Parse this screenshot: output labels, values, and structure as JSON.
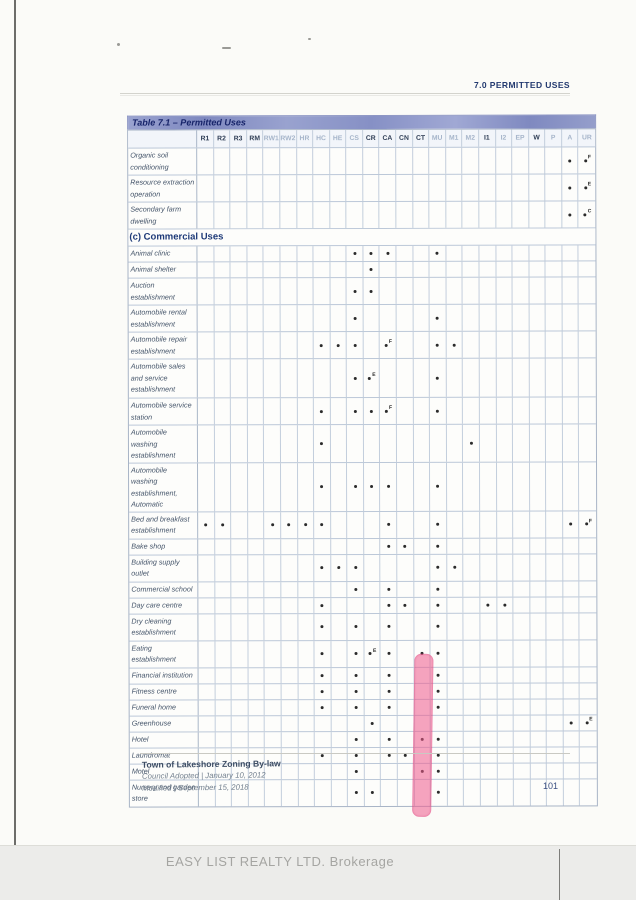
{
  "page": {
    "header": "7.0  PERMITTED USES",
    "page_number": "101",
    "watermark": "EASY LIST REALTY LTD.  Brokerage"
  },
  "footer": {
    "line1": "Town of Lakeshore Zoning By-law",
    "line2": "Council Adopted  |  January 10, 2012",
    "line3": "Modified  |  September 15, 2018"
  },
  "colors": {
    "title_bar_blue": "#8d96c8",
    "heading_navy": "#1e3a78",
    "highlight_pink": "#ee5a8c",
    "grid_line": "#bcc8d8"
  },
  "table": {
    "title": "Table 7.1 – Permitted Uses",
    "columns": [
      {
        "key": "R1",
        "bold": true
      },
      {
        "key": "R2",
        "bold": true
      },
      {
        "key": "R3",
        "bold": true
      },
      {
        "key": "RM",
        "bold": true
      },
      {
        "key": "RW1",
        "bold": false
      },
      {
        "key": "RW2",
        "bold": false
      },
      {
        "key": "HR",
        "bold": false
      },
      {
        "key": "HC",
        "bold": false
      },
      {
        "key": "HE",
        "bold": false
      },
      {
        "key": "CS",
        "bold": false
      },
      {
        "key": "CR",
        "bold": true
      },
      {
        "key": "CA",
        "bold": true
      },
      {
        "key": "CN",
        "bold": true
      },
      {
        "key": "CT",
        "bold": true
      },
      {
        "key": "MU",
        "bold": false
      },
      {
        "key": "M1",
        "bold": false
      },
      {
        "key": "M2",
        "bold": false
      },
      {
        "key": "I1",
        "bold": true
      },
      {
        "key": "I2",
        "bold": false
      },
      {
        "key": "EP",
        "bold": false
      },
      {
        "key": "W",
        "bold": true
      },
      {
        "key": "P",
        "bold": false
      },
      {
        "key": "A",
        "bold": false
      },
      {
        "key": "UR",
        "bold": false
      }
    ],
    "rows": [
      {
        "label": "Organic soil conditioning",
        "lines": 2,
        "dots": [
          {
            "col": "A"
          },
          {
            "col": "UR",
            "sup": "F"
          }
        ]
      },
      {
        "label": "Resource extraction operation",
        "lines": 2,
        "dots": [
          {
            "col": "A"
          },
          {
            "col": "UR",
            "sup": "E"
          }
        ]
      },
      {
        "label": "Secondary farm dwelling",
        "lines": 2,
        "dots": [
          {
            "col": "A"
          },
          {
            "col": "UR",
            "sup": "C"
          }
        ]
      },
      {
        "section": true,
        "label": "(c) Commercial Uses"
      },
      {
        "label": "Animal clinic",
        "lines": 1,
        "dots": [
          {
            "col": "CS"
          },
          {
            "col": "CR"
          },
          {
            "col": "CA"
          },
          {
            "col": "MU"
          }
        ]
      },
      {
        "label": "Animal shelter",
        "lines": 1,
        "dots": [
          {
            "col": "CR"
          }
        ]
      },
      {
        "label": "Auction establishment",
        "lines": 2,
        "dots": [
          {
            "col": "CS"
          },
          {
            "col": "CR"
          }
        ]
      },
      {
        "label": "Automobile rental establishment",
        "lines": 2,
        "dots": [
          {
            "col": "CS"
          },
          {
            "col": "MU"
          }
        ]
      },
      {
        "label": "Automobile repair establishment",
        "lines": 2,
        "dots": [
          {
            "col": "HC"
          },
          {
            "col": "HE"
          },
          {
            "col": "CS"
          },
          {
            "col": "CA",
            "sup": "F"
          },
          {
            "col": "MU"
          },
          {
            "col": "M1"
          }
        ]
      },
      {
        "label": "Automobile sales and service establishment",
        "lines": 3,
        "dots": [
          {
            "col": "CS"
          },
          {
            "col": "CR",
            "sup": "E"
          },
          {
            "col": "MU"
          }
        ]
      },
      {
        "label": "Automobile service station",
        "lines": 2,
        "dots": [
          {
            "col": "HC"
          },
          {
            "col": "CS"
          },
          {
            "col": "CR"
          },
          {
            "col": "CA",
            "sup": "F"
          },
          {
            "col": "MU"
          }
        ]
      },
      {
        "label": "Automobile washing establishment",
        "lines": 2,
        "dots": [
          {
            "col": "HC"
          },
          {
            "col": "M2"
          }
        ]
      },
      {
        "label": "Automobile washing establishment, Automatic",
        "lines": 3,
        "dots": [
          {
            "col": "HC"
          },
          {
            "col": "CS"
          },
          {
            "col": "CR"
          },
          {
            "col": "CA"
          },
          {
            "col": "MU"
          }
        ]
      },
      {
        "label": "Bed and breakfast establishment",
        "lines": 2,
        "dots": [
          {
            "col": "R1"
          },
          {
            "col": "R2"
          },
          {
            "col": "RW1"
          },
          {
            "col": "RW2"
          },
          {
            "col": "HR"
          },
          {
            "col": "HC"
          },
          {
            "col": "CA"
          },
          {
            "col": "MU"
          },
          {
            "col": "A"
          },
          {
            "col": "UR",
            "sup": "F"
          }
        ]
      },
      {
        "label": "Bake shop",
        "lines": 1,
        "dots": [
          {
            "col": "CA"
          },
          {
            "col": "CN"
          },
          {
            "col": "MU"
          }
        ]
      },
      {
        "label": "Building supply outlet",
        "lines": 2,
        "dots": [
          {
            "col": "HC"
          },
          {
            "col": "HE"
          },
          {
            "col": "CS"
          },
          {
            "col": "MU"
          },
          {
            "col": "M1"
          }
        ]
      },
      {
        "label": "Commercial school",
        "lines": 1,
        "dots": [
          {
            "col": "CS"
          },
          {
            "col": "CA"
          },
          {
            "col": "MU"
          }
        ]
      },
      {
        "label": "Day care centre",
        "lines": 1,
        "dots": [
          {
            "col": "HC"
          },
          {
            "col": "CA"
          },
          {
            "col": "CN"
          },
          {
            "col": "MU"
          },
          {
            "col": "I1"
          },
          {
            "col": "I2"
          }
        ]
      },
      {
        "label": "Dry cleaning establishment",
        "lines": 2,
        "dots": [
          {
            "col": "HC"
          },
          {
            "col": "CS"
          },
          {
            "col": "CA"
          },
          {
            "col": "MU"
          }
        ]
      },
      {
        "label": "Eating establishment",
        "lines": 2,
        "dots": [
          {
            "col": "HC"
          },
          {
            "col": "CS"
          },
          {
            "col": "CR",
            "sup": "E"
          },
          {
            "col": "CA"
          },
          {
            "col": "CT"
          },
          {
            "col": "MU"
          }
        ]
      },
      {
        "label": "Financial institution",
        "lines": 1,
        "dots": [
          {
            "col": "HC"
          },
          {
            "col": "CS"
          },
          {
            "col": "CA"
          },
          {
            "col": "MU"
          }
        ]
      },
      {
        "label": "Fitness centre",
        "lines": 1,
        "dots": [
          {
            "col": "HC"
          },
          {
            "col": "CS"
          },
          {
            "col": "CA"
          },
          {
            "col": "MU"
          }
        ]
      },
      {
        "label": "Funeral home",
        "lines": 1,
        "dots": [
          {
            "col": "HC"
          },
          {
            "col": "CS"
          },
          {
            "col": "CA"
          },
          {
            "col": "MU"
          }
        ]
      },
      {
        "label": "Greenhouse",
        "lines": 1,
        "dots": [
          {
            "col": "CR"
          },
          {
            "col": "A"
          },
          {
            "col": "UR",
            "sup": "E"
          }
        ]
      },
      {
        "label": "Hotel",
        "lines": 1,
        "dots": [
          {
            "col": "CS"
          },
          {
            "col": "CA"
          },
          {
            "col": "CT"
          },
          {
            "col": "MU"
          }
        ]
      },
      {
        "label": "Laundromat",
        "lines": 1,
        "dots": [
          {
            "col": "HC"
          },
          {
            "col": "CS"
          },
          {
            "col": "CA"
          },
          {
            "col": "CN"
          },
          {
            "col": "MU"
          }
        ]
      },
      {
        "label": "Motel",
        "lines": 1,
        "dots": [
          {
            "col": "CS"
          },
          {
            "col": "CT"
          },
          {
            "col": "MU"
          }
        ]
      },
      {
        "label": "Nursery and garden store",
        "lines": 2,
        "dots": [
          {
            "col": "CS"
          },
          {
            "col": "CR"
          },
          {
            "col": "MU"
          }
        ]
      }
    ],
    "highlight": {
      "column": "CT",
      "start_row": "Eating establishment",
      "end_row": "Nursery and garden store"
    }
  }
}
